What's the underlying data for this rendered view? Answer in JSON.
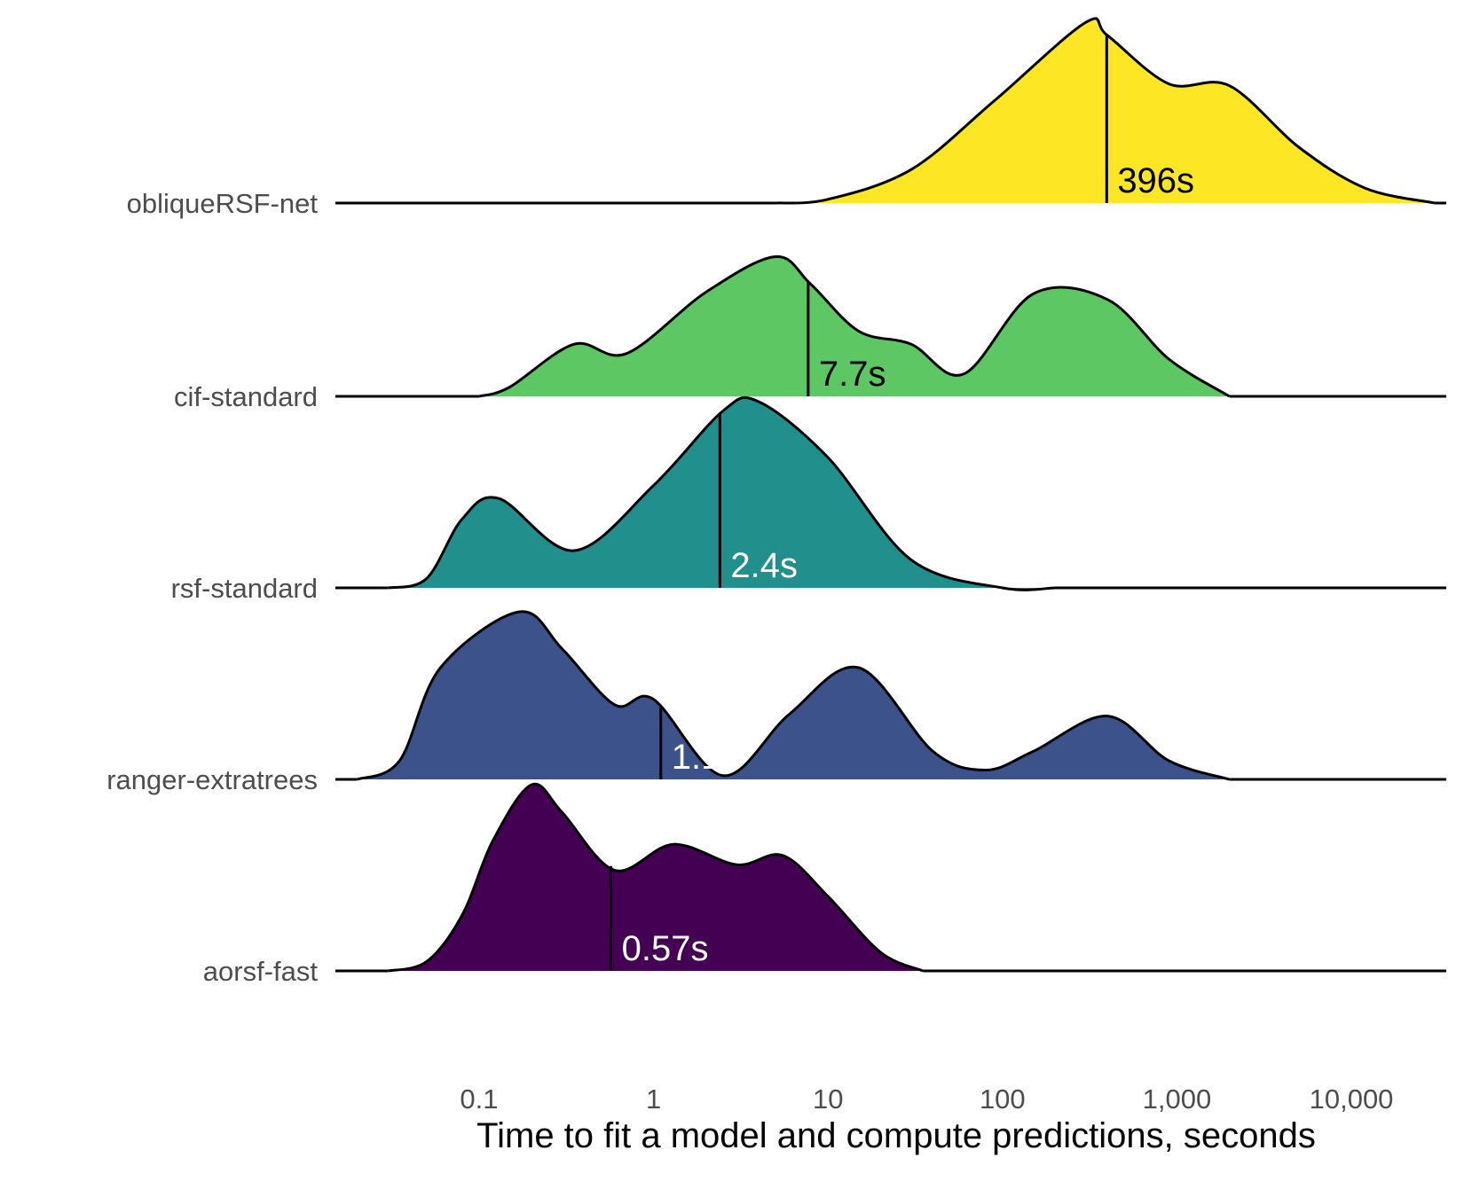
{
  "chart_data": {
    "type": "ridgeline",
    "xlabel": "Time to fit a model and compute predictions, seconds",
    "x_scale": "log10",
    "xlim": [
      0.015,
      35000
    ],
    "x_ticks": [
      0.1,
      1,
      10,
      100,
      1000,
      10000
    ],
    "x_tick_labels": [
      "0.1",
      "1",
      "10",
      "100",
      "1,000",
      "10,000"
    ],
    "grid": false,
    "series": [
      {
        "name": "aorsf-fast",
        "color": "#440154",
        "label_color": "#ffffff",
        "median": 0.57,
        "median_label": "0.57s",
        "density": [
          [
            0.03,
            0
          ],
          [
            0.05,
            0.05
          ],
          [
            0.08,
            0.3
          ],
          [
            0.12,
            0.7
          ],
          [
            0.2,
            1.0
          ],
          [
            0.3,
            0.85
          ],
          [
            0.6,
            0.54
          ],
          [
            1.3,
            0.68
          ],
          [
            3,
            0.57
          ],
          [
            5.5,
            0.62
          ],
          [
            10,
            0.4
          ],
          [
            20,
            0.1
          ],
          [
            35,
            0
          ]
        ]
      },
      {
        "name": "ranger-extratrees",
        "color": "#3b528b",
        "label_color": "#ffffff",
        "median": 1.1,
        "median_label": "1.1s",
        "density": [
          [
            0.02,
            0
          ],
          [
            0.035,
            0.1
          ],
          [
            0.06,
            0.6
          ],
          [
            0.17,
            0.9
          ],
          [
            0.3,
            0.7
          ],
          [
            0.6,
            0.4
          ],
          [
            1,
            0.43
          ],
          [
            2.5,
            0.02
          ],
          [
            6,
            0.35
          ],
          [
            15,
            0.6
          ],
          [
            40,
            0.15
          ],
          [
            80,
            0.05
          ],
          [
            150,
            0.15
          ],
          [
            400,
            0.34
          ],
          [
            900,
            0.1
          ],
          [
            2000,
            0
          ]
        ]
      },
      {
        "name": "rsf-standard",
        "color": "#21908d",
        "label_color": "#ffffff",
        "median": 2.4,
        "median_label": "2.4s",
        "density": [
          [
            0.03,
            0
          ],
          [
            0.05,
            0.05
          ],
          [
            0.08,
            0.37
          ],
          [
            0.13,
            0.48
          ],
          [
            0.35,
            0.2
          ],
          [
            1,
            0.55
          ],
          [
            2.5,
            0.95
          ],
          [
            4,
            1.0
          ],
          [
            10,
            0.7
          ],
          [
            30,
            0.15
          ],
          [
            100,
            0
          ],
          [
            200,
            0
          ]
        ]
      },
      {
        "name": "cif-standard",
        "color": "#5dc863",
        "label_color": "#000000",
        "median": 7.7,
        "median_label": "7.7s",
        "density": [
          [
            0.1,
            0
          ],
          [
            0.15,
            0.05
          ],
          [
            0.35,
            0.28
          ],
          [
            0.7,
            0.23
          ],
          [
            2,
            0.56
          ],
          [
            5,
            0.75
          ],
          [
            8,
            0.6
          ],
          [
            15,
            0.35
          ],
          [
            30,
            0.28
          ],
          [
            60,
            0.12
          ],
          [
            150,
            0.55
          ],
          [
            400,
            0.52
          ],
          [
            900,
            0.2
          ],
          [
            2000,
            0
          ]
        ]
      },
      {
        "name": "obliqueRSF-net",
        "color": "#fde725",
        "label_color": "#000000",
        "median": 396,
        "median_label": "396s",
        "density": [
          [
            5,
            0
          ],
          [
            10,
            0.02
          ],
          [
            30,
            0.18
          ],
          [
            90,
            0.55
          ],
          [
            300,
            0.97
          ],
          [
            400,
            0.9
          ],
          [
            900,
            0.64
          ],
          [
            2000,
            0.63
          ],
          [
            5000,
            0.3
          ],
          [
            12000,
            0.08
          ],
          [
            30000,
            0
          ]
        ]
      }
    ]
  }
}
